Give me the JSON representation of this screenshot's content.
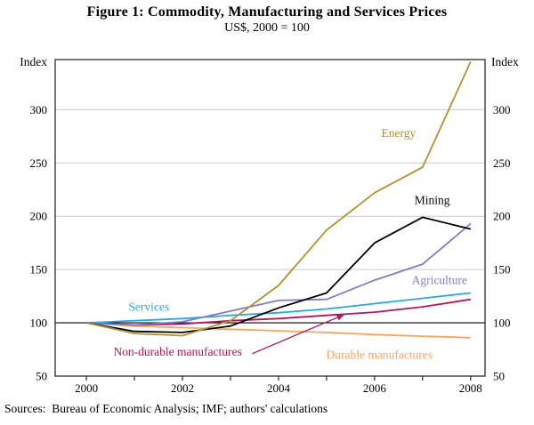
{
  "figure": {
    "title": "Figure 1: Commodity, Manufacturing and Services Prices",
    "subtitle": "US$, 2000 = 100",
    "source": "Sources:  Bureau of Economic Analysis; IMF; authors' calculations"
  },
  "chart_data": {
    "type": "line",
    "title": "Figure 1: Commodity, Manufacturing and Services Prices",
    "subtitle": "US$, 2000 = 100",
    "ylabel_left": "Index",
    "ylabel_right": "Index",
    "x": [
      2000,
      2001,
      2002,
      2003,
      2004,
      2005,
      2006,
      2007,
      2008
    ],
    "xtick_labels": [
      "2000",
      "2002",
      "2004",
      "2006",
      "2008"
    ],
    "yticks": [
      50,
      100,
      150,
      200,
      250,
      300
    ],
    "ygrid": [
      150,
      200,
      250,
      300
    ],
    "baseline": 100,
    "xlim": [
      1999.35,
      2008.3
    ],
    "ylim": [
      50,
      347
    ],
    "grid_color": "#c9c9d6",
    "frame_color": "#1a1a1a",
    "legend_position": "inline-labels",
    "grid": "horizontal-only",
    "series": [
      {
        "name": "Durable manufactures",
        "color": "#f9a45b",
        "values": [
          100,
          97,
          95.5,
          94,
          92.5,
          91,
          89,
          87.5,
          86
        ],
        "label_x": 2006.1,
        "label_y": 70
      },
      {
        "name": "Non-durable manufactures",
        "color": "#b0175f",
        "values": [
          100,
          98,
          99,
          102,
          104,
          107,
          110,
          115,
          122
        ],
        "label_x": 2001.9,
        "label_y": 73
      },
      {
        "name": "Services",
        "color": "#2aa9e0",
        "values": [
          100,
          102,
          104,
          107,
          109.5,
          113,
          118,
          123,
          128
        ],
        "label_x": 2001.3,
        "label_y": 115
      },
      {
        "name": "Agriculture",
        "color": "#837cc8",
        "values": [
          100,
          98,
          101,
          111,
          121,
          122,
          140,
          155,
          193
        ],
        "label_x": 2007.35,
        "label_y": 140
      },
      {
        "name": "Mining",
        "color": "#000000",
        "values": [
          100,
          92,
          91,
          97,
          114,
          128,
          175,
          199,
          188
        ],
        "label_x": 2007.2,
        "label_y": 215
      },
      {
        "name": "Energy",
        "color": "#b2922f",
        "values": [
          100,
          90,
          88,
          102,
          135,
          187,
          222,
          246,
          345
        ],
        "label_x": 2006.5,
        "label_y": 278
      }
    ],
    "annotation_arrow": {
      "series": "Non-durable manufactures",
      "color": "#b0175f",
      "from_x": 2003.45,
      "from_y": 71,
      "to_x": 2005.38,
      "to_y": 108
    }
  }
}
